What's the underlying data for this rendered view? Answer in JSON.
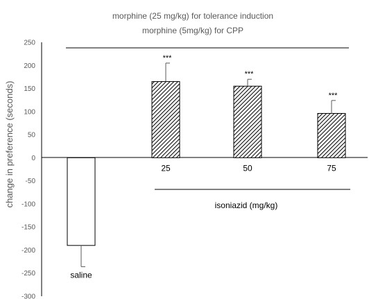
{
  "chart_data": {
    "type": "bar",
    "title_lines": [
      "morphine (25 mg/kg) for tolerance induction",
      "morphine (5mg/kg) for CPP"
    ],
    "ylabel": "change in preference (seconds)",
    "ylim": [
      -300,
      250
    ],
    "yticks": [
      250,
      200,
      150,
      100,
      50,
      0,
      -50,
      -100,
      -150,
      -200,
      -250,
      -300
    ],
    "categories": [
      "saline",
      "25",
      "50",
      "75"
    ],
    "values": [
      -190,
      165,
      155,
      96
    ],
    "errors": [
      46,
      40,
      15,
      28
    ],
    "patterns": [
      "none",
      "hatched",
      "hatched",
      "hatched"
    ],
    "significance": [
      "",
      "***",
      "***",
      "***"
    ],
    "group_label": "isoniazid (mg/kg)",
    "grid": false
  }
}
